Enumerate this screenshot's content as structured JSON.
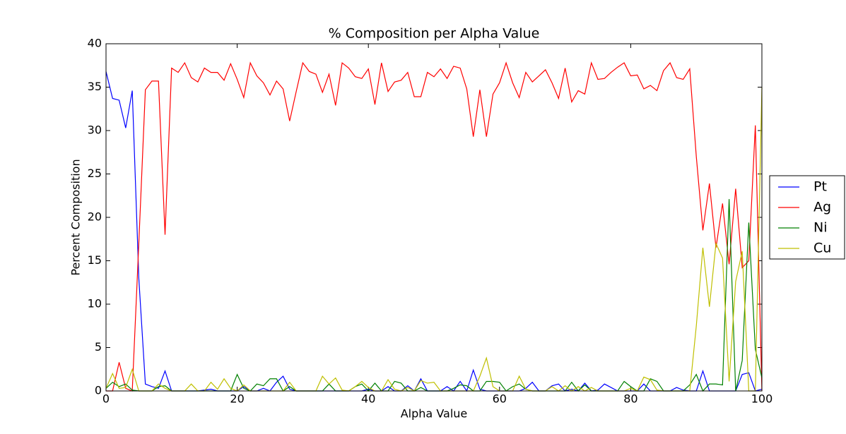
{
  "chart_data": {
    "type": "line",
    "title": "% Composition per Alpha Value",
    "xlabel": "Alpha Value",
    "ylabel": "Percent Composition",
    "x": [
      0,
      1,
      2,
      3,
      4,
      5,
      6,
      7,
      8,
      9,
      10,
      11,
      12,
      13,
      14,
      15,
      16,
      17,
      18,
      19,
      20,
      21,
      22,
      23,
      24,
      25,
      26,
      27,
      28,
      29,
      30,
      31,
      32,
      33,
      34,
      35,
      36,
      37,
      38,
      39,
      40,
      41,
      42,
      43,
      44,
      45,
      46,
      47,
      48,
      49,
      50,
      51,
      52,
      53,
      54,
      55,
      56,
      57,
      58,
      59,
      60,
      61,
      62,
      63,
      64,
      65,
      66,
      67,
      68,
      69,
      70,
      71,
      72,
      73,
      74,
      75,
      76,
      77,
      78,
      79,
      80,
      81,
      82,
      83,
      84,
      85,
      86,
      87,
      88,
      89,
      90,
      91,
      92,
      93,
      94,
      95,
      96,
      97,
      98,
      99,
      100
    ],
    "series": [
      {
        "name": "Pt",
        "color": "#0000ff",
        "values": [
          36.8,
          33.7,
          33.5,
          30.3,
          34.6,
          13,
          0.8,
          0.5,
          0.3,
          2.3,
          0,
          0,
          0,
          0,
          0,
          0.1,
          0.2,
          0,
          0,
          0,
          0,
          0.5,
          0,
          0,
          0.3,
          0,
          1.0,
          1.7,
          0.2,
          0,
          0,
          0,
          0,
          0,
          0,
          0,
          0,
          0,
          0,
          0,
          0.2,
          0,
          0,
          0.5,
          0,
          0,
          0.6,
          0,
          1.4,
          0,
          0,
          0,
          0.5,
          0,
          1.1,
          0,
          2.4,
          0.2,
          0,
          0,
          0,
          0,
          0,
          0,
          0.3,
          1.0,
          0,
          0,
          0.6,
          0.8,
          0,
          0.2,
          0,
          0.9,
          0,
          0.1,
          0.8,
          0.4,
          0,
          0,
          0,
          0,
          0.8,
          0,
          0,
          0,
          0,
          0.4,
          0.1,
          0,
          0,
          2.3,
          0,
          0,
          0,
          0,
          0,
          1.9,
          2.1,
          0,
          0.2
        ]
      },
      {
        "name": "Ag",
        "color": "#ff0000",
        "values": [
          0,
          0,
          3.3,
          0.3,
          0,
          17,
          34.7,
          35.7,
          35.7,
          18,
          37.2,
          36.7,
          37.8,
          36.1,
          35.6,
          37.2,
          36.7,
          36.7,
          35.8,
          37.7,
          35.9,
          33.8,
          37.8,
          36.3,
          35.5,
          34.1,
          35.7,
          34.8,
          31.1,
          34.5,
          37.8,
          36.8,
          36.5,
          34.4,
          36.5,
          32.9,
          37.8,
          37.2,
          36.2,
          36.0,
          37.1,
          33.0,
          37.8,
          34.5,
          35.6,
          35.8,
          36.7,
          33.9,
          33.9,
          36.7,
          36.2,
          37.1,
          36.0,
          37.4,
          37.2,
          34.8,
          29.3,
          34.7,
          29.3,
          34.2,
          35.5,
          37.8,
          35.5,
          33.8,
          36.7,
          35.6,
          36.3,
          37.0,
          35.5,
          33.7,
          37.2,
          33.3,
          34.6,
          34.2,
          37.8,
          35.9,
          36.0,
          36.7,
          37.3,
          37.8,
          36.3,
          36.4,
          34.8,
          35.2,
          34.6,
          36.9,
          37.8,
          36.1,
          35.9,
          37.1,
          27,
          18.5,
          23.9,
          16.5,
          21.6,
          14.6,
          23.3,
          14.2,
          15,
          30.6,
          0
        ]
      },
      {
        "name": "Ni",
        "color": "#008000",
        "values": [
          0.3,
          1.0,
          0.5,
          0.8,
          0.1,
          0,
          0,
          0,
          0.5,
          0.6,
          0,
          0,
          0,
          0,
          0,
          0,
          0,
          0,
          0,
          0,
          1.9,
          0.3,
          0,
          0.8,
          0.6,
          1.4,
          1.4,
          0,
          0.5,
          0,
          0,
          0,
          0,
          0,
          0.8,
          0,
          0,
          0,
          0.5,
          0.8,
          0,
          0.9,
          0,
          0,
          1.1,
          0.9,
          0,
          0,
          0.4,
          0,
          0,
          0,
          0,
          0.3,
          0.7,
          0.6,
          0,
          0,
          1.1,
          1.1,
          1.0,
          0,
          0.5,
          0.8,
          0.2,
          0,
          0,
          0,
          0,
          0,
          0,
          1.0,
          0,
          0.7,
          0,
          0,
          0,
          0,
          0,
          1.1,
          0.5,
          0,
          0,
          1.4,
          1.1,
          0,
          0,
          0,
          0,
          0.7,
          1.9,
          0,
          0.8,
          0.8,
          0.7,
          22.1,
          0,
          3.5,
          19.4,
          4.8,
          1.5
        ]
      },
      {
        "name": "Cu",
        "color": "#bfbf00",
        "values": [
          0.3,
          2.0,
          0.3,
          0.4,
          2.5,
          0,
          0,
          0,
          0.8,
          0.3,
          0,
          0,
          0,
          0.8,
          0,
          0,
          1.0,
          0.2,
          1.4,
          0.3,
          0,
          0.7,
          0,
          0,
          0,
          0,
          0,
          0,
          1.0,
          0,
          0,
          0,
          0,
          1.7,
          0.8,
          1.5,
          0.1,
          0,
          0.5,
          1.1,
          0.4,
          0,
          0,
          1.3,
          0.2,
          0,
          0.4,
          0,
          1.2,
          0.9,
          1.0,
          0,
          0,
          0,
          0,
          0,
          0,
          1.7,
          3.8,
          0.5,
          0,
          0,
          0,
          1.7,
          0.2,
          0,
          0,
          0,
          0.5,
          0,
          0.6,
          0,
          0.5,
          0,
          0.4,
          0,
          0,
          0,
          0,
          0,
          0.3,
          0,
          1.6,
          1.3,
          0.1,
          0,
          0,
          0,
          0,
          0,
          7.5,
          16.5,
          9.7,
          17,
          15.3,
          1.1,
          12.6,
          16.1,
          0,
          0,
          35
        ]
      }
    ],
    "xlim": [
      0,
      100
    ],
    "xticks": [
      0,
      20,
      40,
      60,
      80,
      100
    ],
    "ylim": [
      0,
      40
    ],
    "yticks": [
      0,
      5,
      10,
      15,
      20,
      25,
      30,
      35,
      40
    ],
    "legend": "right"
  }
}
